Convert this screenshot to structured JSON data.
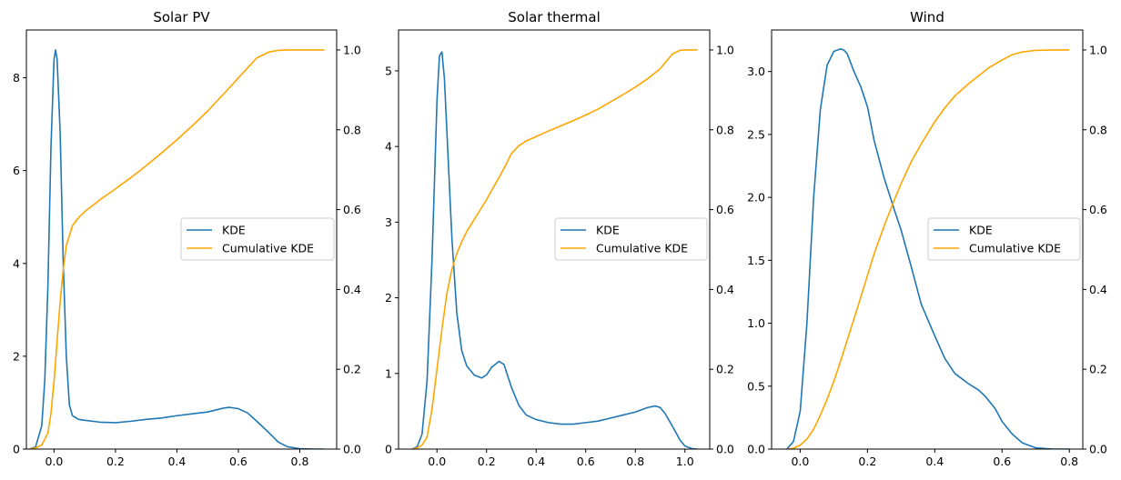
{
  "chart_data": [
    {
      "type": "line",
      "title": "Solar PV",
      "xlim": [
        -0.09,
        0.92
      ],
      "xticks": [
        0.0,
        0.2,
        0.4,
        0.6,
        0.8
      ],
      "ylim": [
        0,
        9.03
      ],
      "yticks": [
        0,
        2,
        4,
        6,
        8
      ],
      "y2lim": [
        0,
        1.05
      ],
      "y2ticks": [
        0.0,
        0.2,
        0.4,
        0.6,
        0.8,
        1.0
      ],
      "legend": "center-right",
      "series": [
        {
          "name": "KDE",
          "axis": "left",
          "color": "#1f77b4",
          "x": [
            -0.08,
            -0.06,
            -0.04,
            -0.03,
            -0.02,
            -0.01,
            0.0,
            0.005,
            0.01,
            0.02,
            0.03,
            0.04,
            0.05,
            0.06,
            0.08,
            0.1,
            0.15,
            0.2,
            0.25,
            0.3,
            0.35,
            0.4,
            0.45,
            0.5,
            0.55,
            0.57,
            0.6,
            0.63,
            0.66,
            0.7,
            0.73,
            0.76,
            0.8,
            0.85,
            0.88
          ],
          "y": [
            0.0,
            0.05,
            0.5,
            1.5,
            3.5,
            6.5,
            8.4,
            8.6,
            8.4,
            6.8,
            4.0,
            2.0,
            0.95,
            0.72,
            0.64,
            0.62,
            0.58,
            0.57,
            0.6,
            0.64,
            0.67,
            0.72,
            0.76,
            0.8,
            0.88,
            0.9,
            0.87,
            0.78,
            0.6,
            0.35,
            0.15,
            0.05,
            0.01,
            0.0,
            0.0
          ]
        },
        {
          "name": "Cumulative KDE",
          "axis": "right",
          "color": "#ffa500",
          "x": [
            -0.08,
            -0.06,
            -0.04,
            -0.02,
            -0.01,
            0.0,
            0.01,
            0.02,
            0.03,
            0.04,
            0.06,
            0.08,
            0.1,
            0.15,
            0.2,
            0.25,
            0.3,
            0.35,
            0.4,
            0.45,
            0.5,
            0.55,
            0.6,
            0.63,
            0.66,
            0.7,
            0.73,
            0.76,
            0.8,
            0.85,
            0.88
          ],
          "y": [
            0.0,
            0.003,
            0.01,
            0.04,
            0.09,
            0.17,
            0.27,
            0.37,
            0.45,
            0.51,
            0.56,
            0.58,
            0.595,
            0.625,
            0.652,
            0.68,
            0.71,
            0.742,
            0.775,
            0.81,
            0.847,
            0.888,
            0.93,
            0.955,
            0.98,
            0.995,
            0.999,
            1.0,
            1.0,
            1.0,
            1.0
          ]
        }
      ]
    },
    {
      "type": "line",
      "title": "Solar thermal",
      "xlim": [
        -0.155,
        1.1
      ],
      "xticks": [
        0.0,
        0.2,
        0.4,
        0.6,
        0.8,
        1.0
      ],
      "ylim": [
        0,
        5.54
      ],
      "yticks": [
        0,
        1,
        2,
        3,
        4,
        5
      ],
      "y2lim": [
        0,
        1.05
      ],
      "y2ticks": [
        0.0,
        0.2,
        0.4,
        0.6,
        0.8,
        1.0
      ],
      "legend": "center-right",
      "series": [
        {
          "name": "KDE",
          "axis": "left",
          "color": "#1f77b4",
          "x": [
            -0.1,
            -0.08,
            -0.06,
            -0.04,
            -0.02,
            0.0,
            0.01,
            0.02,
            0.03,
            0.04,
            0.06,
            0.08,
            0.1,
            0.12,
            0.15,
            0.18,
            0.2,
            0.22,
            0.25,
            0.27,
            0.3,
            0.33,
            0.36,
            0.4,
            0.45,
            0.5,
            0.55,
            0.6,
            0.65,
            0.7,
            0.75,
            0.8,
            0.85,
            0.88,
            0.9,
            0.92,
            0.95,
            0.98,
            1.0,
            1.03,
            1.05
          ],
          "y": [
            0.0,
            0.03,
            0.2,
            0.9,
            2.5,
            4.6,
            5.2,
            5.25,
            4.9,
            4.2,
            2.8,
            1.8,
            1.3,
            1.1,
            0.98,
            0.94,
            0.98,
            1.08,
            1.16,
            1.12,
            0.82,
            0.58,
            0.45,
            0.39,
            0.35,
            0.33,
            0.33,
            0.35,
            0.37,
            0.41,
            0.45,
            0.49,
            0.55,
            0.57,
            0.55,
            0.47,
            0.3,
            0.12,
            0.04,
            0.005,
            0.0
          ]
        },
        {
          "name": "Cumulative KDE",
          "axis": "right",
          "color": "#ffa500",
          "x": [
            -0.1,
            -0.08,
            -0.06,
            -0.04,
            -0.02,
            0.0,
            0.02,
            0.04,
            0.06,
            0.08,
            0.1,
            0.12,
            0.15,
            0.18,
            0.2,
            0.22,
            0.25,
            0.28,
            0.3,
            0.33,
            0.36,
            0.4,
            0.45,
            0.5,
            0.55,
            0.6,
            0.65,
            0.7,
            0.75,
            0.8,
            0.85,
            0.9,
            0.92,
            0.95,
            0.98,
            1.0,
            1.05
          ],
          "y": [
            0.0,
            0.003,
            0.01,
            0.03,
            0.1,
            0.2,
            0.3,
            0.39,
            0.45,
            0.49,
            0.52,
            0.545,
            0.575,
            0.605,
            0.625,
            0.648,
            0.68,
            0.715,
            0.74,
            0.76,
            0.772,
            0.783,
            0.797,
            0.81,
            0.823,
            0.837,
            0.852,
            0.87,
            0.888,
            0.907,
            0.928,
            0.953,
            0.968,
            0.99,
            0.999,
            1.0,
            1.0
          ]
        }
      ]
    },
    {
      "type": "line",
      "title": "Wind",
      "xlim": [
        -0.085,
        0.84
      ],
      "xticks": [
        0.0,
        0.2,
        0.4,
        0.6,
        0.8
      ],
      "ylim": [
        0,
        3.33
      ],
      "yticks": [
        0.0,
        0.5,
        1.0,
        1.5,
        2.0,
        2.5,
        3.0
      ],
      "y2lim": [
        0,
        1.05
      ],
      "y2ticks": [
        0.0,
        0.2,
        0.4,
        0.6,
        0.8,
        1.0
      ],
      "legend": "center-right",
      "series": [
        {
          "name": "KDE",
          "axis": "left",
          "color": "#1f77b4",
          "x": [
            -0.04,
            -0.02,
            0.0,
            0.02,
            0.04,
            0.06,
            0.08,
            0.1,
            0.12,
            0.13,
            0.14,
            0.16,
            0.18,
            0.2,
            0.22,
            0.25,
            0.28,
            0.3,
            0.33,
            0.36,
            0.4,
            0.43,
            0.46,
            0.5,
            0.53,
            0.55,
            0.58,
            0.6,
            0.63,
            0.66,
            0.7,
            0.75,
            0.8
          ],
          "y": [
            0.0,
            0.06,
            0.3,
            1.0,
            2.0,
            2.7,
            3.05,
            3.16,
            3.18,
            3.17,
            3.14,
            3.0,
            2.88,
            2.72,
            2.45,
            2.15,
            1.9,
            1.74,
            1.45,
            1.15,
            0.9,
            0.72,
            0.6,
            0.52,
            0.47,
            0.42,
            0.32,
            0.22,
            0.12,
            0.05,
            0.01,
            0.0,
            0.0
          ]
        },
        {
          "name": "Cumulative KDE",
          "axis": "right",
          "color": "#ffa500",
          "x": [
            -0.04,
            -0.02,
            0.0,
            0.02,
            0.04,
            0.06,
            0.08,
            0.1,
            0.12,
            0.15,
            0.18,
            0.2,
            0.22,
            0.25,
            0.28,
            0.3,
            0.33,
            0.36,
            0.4,
            0.43,
            0.46,
            0.5,
            0.53,
            0.56,
            0.6,
            0.63,
            0.66,
            0.7,
            0.75,
            0.8
          ],
          "y": [
            0.0,
            0.002,
            0.01,
            0.025,
            0.05,
            0.085,
            0.125,
            0.17,
            0.22,
            0.3,
            0.38,
            0.435,
            0.49,
            0.56,
            0.625,
            0.665,
            0.72,
            0.765,
            0.82,
            0.855,
            0.885,
            0.915,
            0.935,
            0.955,
            0.975,
            0.988,
            0.995,
            0.999,
            1.0,
            1.0
          ]
        }
      ]
    }
  ]
}
